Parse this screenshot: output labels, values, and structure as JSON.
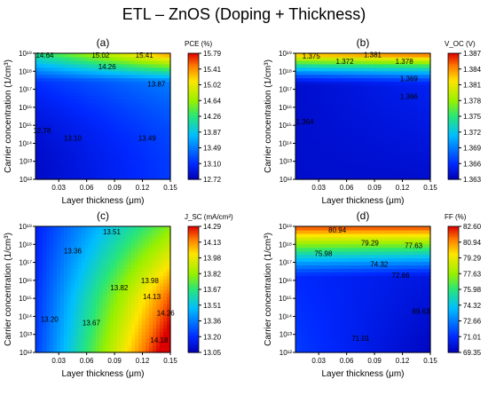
{
  "figure": {
    "title": "ETL – ZnOS (Doping + Thickness)"
  },
  "chart_data": [
    {
      "type": "heatmap",
      "label": "(a)",
      "colorbar_label": "PCE (%)",
      "xlabel": "Layer thickness (μm)",
      "ylabel": "Carrier concentration (1/cm³)",
      "x_ticks": [
        "0.03",
        "0.06",
        "0.09",
        "0.12",
        "0.15"
      ],
      "y_ticks": [
        "10¹²",
        "10¹³",
        "10¹⁴",
        "10¹⁵",
        "10¹⁶",
        "10¹⁷",
        "10¹⁸",
        "10¹⁹"
      ],
      "xlim": [
        0.005,
        0.15
      ],
      "ylim_log10": [
        12,
        19
      ],
      "colorbar_ticks": [
        "15.79",
        "15.41",
        "15.02",
        "14.64",
        "14.26",
        "13.87",
        "13.49",
        "13.10",
        "12.72"
      ],
      "zlim": [
        12.72,
        15.79
      ],
      "contour_labels": [
        {
          "text": "14.64",
          "x": 0.015,
          "y": 18.9
        },
        {
          "text": "15.02",
          "x": 0.075,
          "y": 18.9
        },
        {
          "text": "15.41",
          "x": 0.122,
          "y": 18.9
        },
        {
          "text": "14.26",
          "x": 0.082,
          "y": 18.25
        },
        {
          "text": "13.87",
          "x": 0.135,
          "y": 17.3
        },
        {
          "text": "12.78",
          "x": 0.012,
          "y": 14.7
        },
        {
          "text": "13.10",
          "x": 0.045,
          "y": 14.3
        },
        {
          "text": "13.49",
          "x": 0.125,
          "y": 14.3
        }
      ]
    },
    {
      "type": "heatmap",
      "label": "(b)",
      "colorbar_label": "V_OC (V)",
      "xlabel": "Layer thickness (μm)",
      "ylabel": "Carrier concentration (1/cm³)",
      "x_ticks": [
        "0.03",
        "0.06",
        "0.09",
        "0.12",
        "0.15"
      ],
      "y_ticks": [
        "10¹²",
        "10¹³",
        "10¹⁴",
        "10¹⁵",
        "10¹⁶",
        "10¹⁷",
        "10¹⁸",
        "10¹⁹"
      ],
      "xlim": [
        0.005,
        0.15
      ],
      "ylim_log10": [
        12,
        19
      ],
      "colorbar_ticks": [
        "1.387",
        "1.384",
        "1.381",
        "1.378",
        "1.375",
        "1.372",
        "1.369",
        "1.366",
        "1.363"
      ],
      "zlim": [
        1.363,
        1.387
      ],
      "contour_labels": [
        {
          "text": "1.375",
          "x": 0.022,
          "y": 18.85
        },
        {
          "text": "1.381",
          "x": 0.088,
          "y": 18.92
        },
        {
          "text": "1.372",
          "x": 0.058,
          "y": 18.55
        },
        {
          "text": "1.378",
          "x": 0.122,
          "y": 18.55
        },
        {
          "text": "1.369",
          "x": 0.127,
          "y": 17.6
        },
        {
          "text": "1.366",
          "x": 0.127,
          "y": 16.6
        },
        {
          "text": "1.364",
          "x": 0.015,
          "y": 15.2
        }
      ]
    },
    {
      "type": "heatmap",
      "label": "(c)",
      "colorbar_label": "J_SC (mA/cm²)",
      "xlabel": "Layer thickness (μm)",
      "ylabel": "Carrier concentration (1/cm³)",
      "x_ticks": [
        "0.03",
        "0.06",
        "0.09",
        "0.12",
        "0.15"
      ],
      "y_ticks": [
        "10¹²",
        "10¹³",
        "10¹⁴",
        "10¹⁵",
        "10¹⁶",
        "10¹⁷",
        "10¹⁸",
        "10¹⁹"
      ],
      "xlim": [
        0.005,
        0.15
      ],
      "ylim_log10": [
        12,
        19
      ],
      "colorbar_ticks": [
        "14.29",
        "14.13",
        "13.98",
        "13.82",
        "13.67",
        "13.51",
        "13.36",
        "13.20",
        "13.05"
      ],
      "zlim": [
        13.05,
        14.29
      ],
      "contour_labels": [
        {
          "text": "13.51",
          "x": 0.087,
          "y": 18.7
        },
        {
          "text": "13.36",
          "x": 0.045,
          "y": 17.65
        },
        {
          "text": "13.98",
          "x": 0.128,
          "y": 16.0
        },
        {
          "text": "13.82",
          "x": 0.095,
          "y": 15.6
        },
        {
          "text": "14.13",
          "x": 0.13,
          "y": 15.1
        },
        {
          "text": "14.26",
          "x": 0.145,
          "y": 14.2
        },
        {
          "text": "13.20",
          "x": 0.02,
          "y": 13.85
        },
        {
          "text": "13.67",
          "x": 0.065,
          "y": 13.65
        },
        {
          "text": "14.18",
          "x": 0.138,
          "y": 12.7
        }
      ]
    },
    {
      "type": "heatmap",
      "label": "(d)",
      "colorbar_label": "FF (%)",
      "xlabel": "Layer thickness (μm)",
      "ylabel": "Carrier concentration (1/cm³)",
      "x_ticks": [
        "0.03",
        "0.06",
        "0.09",
        "0.12",
        "0.15"
      ],
      "y_ticks": [
        "10¹²",
        "10¹³",
        "10¹⁴",
        "10¹⁵",
        "10¹⁶",
        "10¹⁷",
        "10¹⁸",
        "10¹⁹"
      ],
      "xlim": [
        0.005,
        0.15
      ],
      "ylim_log10": [
        12,
        19
      ],
      "colorbar_ticks": [
        "82.60",
        "80.94",
        "79.29",
        "77.63",
        "75.98",
        "74.32",
        "72.66",
        "71.01",
        "69.35"
      ],
      "zlim": [
        69.35,
        82.6
      ],
      "contour_labels": [
        {
          "text": "80.94",
          "x": 0.05,
          "y": 18.8
        },
        {
          "text": "79.29",
          "x": 0.085,
          "y": 18.1
        },
        {
          "text": "77.63",
          "x": 0.132,
          "y": 17.95
        },
        {
          "text": "75.98",
          "x": 0.035,
          "y": 17.5
        },
        {
          "text": "74.32",
          "x": 0.095,
          "y": 16.9
        },
        {
          "text": "72.66",
          "x": 0.118,
          "y": 16.3
        },
        {
          "text": "71.01",
          "x": 0.075,
          "y": 12.8
        },
        {
          "text": "69.63",
          "x": 0.14,
          "y": 14.3
        }
      ]
    }
  ]
}
